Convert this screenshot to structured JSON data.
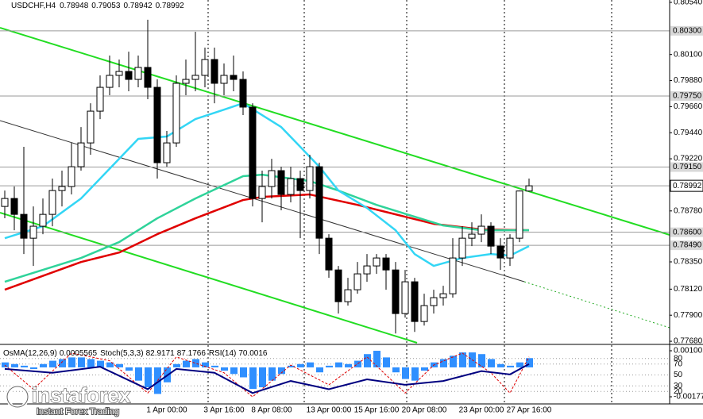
{
  "brand": {
    "name": "instaforex",
    "tagline": "Instant Forex Trading"
  },
  "chart_data": [
    {
      "type": "candlestick",
      "symbol": "USDCHF,H4",
      "categories": [
        null,
        null,
        null,
        null,
        null,
        null,
        null,
        null,
        null,
        null,
        null,
        null,
        null,
        null,
        null,
        null,
        null,
        "1 Apr 00:00",
        null,
        null,
        null,
        null,
        null,
        "3 Apr 16:00",
        null,
        null,
        null,
        null,
        "8 Apr 08:00",
        null,
        null,
        null,
        null,
        null,
        "13 Apr 00:00",
        null,
        null,
        null,
        null,
        "15 Apr 16:00",
        null,
        null,
        null,
        null,
        "20 Apr 08:00",
        null,
        null,
        null,
        null,
        null,
        "23 Apr 00:00",
        null,
        null,
        null,
        null,
        "27 Apr 16:00"
      ],
      "open": [
        0.78818,
        0.78885,
        0.78751,
        0.7855,
        0.78651,
        0.78751,
        0.78952,
        0.78986,
        0.79153,
        0.79354,
        0.79622,
        0.79823,
        0.79924,
        0.79957,
        0.7989,
        0.79991,
        0.79823,
        0.79187,
        0.79354,
        0.79857,
        0.7989,
        0.79924,
        0.80058,
        0.79857,
        0.79924,
        0.7989,
        0.79656,
        0.78885,
        0.78986,
        0.7912,
        0.78919,
        0.79053,
        0.78952,
        0.79153,
        0.7855,
        0.78282,
        0.78014,
        0.78115,
        0.78249,
        0.78316,
        0.78383,
        0.78282,
        0.77914,
        0.78182,
        0.77847,
        0.77981,
        0.78048,
        0.78081,
        0.78383,
        0.7855,
        0.78584,
        0.78651,
        0.78483,
        0.78383,
        0.7855,
        0.78948
      ],
      "high": [
        0.78952,
        0.78986,
        0.79321,
        0.78818,
        0.78885,
        0.79053,
        0.7912,
        0.79354,
        0.79488,
        0.79689,
        0.79924,
        0.80091,
        0.80058,
        0.80124,
        0.80091,
        0.80393,
        0.7989,
        0.79455,
        0.79924,
        0.80058,
        0.80292,
        0.80158,
        0.80158,
        0.80024,
        0.80091,
        0.79957,
        0.79689,
        0.7912,
        0.7922,
        0.79153,
        0.79153,
        0.7912,
        0.79254,
        0.79187,
        0.78584,
        0.78316,
        0.78215,
        0.78349,
        0.78416,
        0.78416,
        0.78416,
        0.78349,
        0.78282,
        0.78215,
        0.78081,
        0.78115,
        0.78148,
        0.7855,
        0.78651,
        0.78684,
        0.78751,
        0.78684,
        0.7855,
        0.78584,
        0.78952,
        0.79053
      ],
      "low": [
        0.78718,
        0.78617,
        0.78416,
        0.78316,
        0.78584,
        0.78651,
        0.78818,
        0.78919,
        0.7912,
        0.79254,
        0.79555,
        0.79756,
        0.79823,
        0.7979,
        0.79823,
        0.79723,
        0.79053,
        0.79153,
        0.79321,
        0.79756,
        0.7979,
        0.79823,
        0.79689,
        0.79756,
        0.7979,
        0.79589,
        0.78818,
        0.78684,
        0.78885,
        0.78785,
        0.78852,
        0.7855,
        0.78885,
        0.78416,
        0.78215,
        0.77914,
        0.77981,
        0.78081,
        0.78182,
        0.78249,
        0.78115,
        0.77746,
        0.7788,
        0.77759,
        0.77813,
        0.77914,
        0.77981,
        0.78048,
        0.78316,
        0.78483,
        0.78517,
        0.78416,
        0.78282,
        0.78316,
        0.78517,
        0.78942
      ],
      "close": [
        0.78885,
        0.78751,
        0.7855,
        0.78651,
        0.78751,
        0.78952,
        0.78986,
        0.79153,
        0.79354,
        0.79622,
        0.79823,
        0.79924,
        0.79957,
        0.7989,
        0.79991,
        0.79823,
        0.79187,
        0.79354,
        0.79857,
        0.7989,
        0.79924,
        0.80058,
        0.79857,
        0.79924,
        0.7989,
        0.79656,
        0.78885,
        0.78986,
        0.7912,
        0.78919,
        0.79053,
        0.78952,
        0.79153,
        0.7855,
        0.78282,
        0.78014,
        0.78115,
        0.78249,
        0.78316,
        0.78383,
        0.78282,
        0.77914,
        0.78182,
        0.77847,
        0.77981,
        0.78048,
        0.78081,
        0.78383,
        0.7855,
        0.78584,
        0.78651,
        0.78483,
        0.78383,
        0.7855,
        0.78948,
        0.78992
      ],
      "series": [
        {
          "color": "#e00000",
          "x": [
            0,
            8,
            12,
            16,
            20,
            25,
            27,
            32,
            37,
            41,
            45,
            50,
            55
          ],
          "values": [
            0.78115,
            0.78349,
            0.78429,
            0.78584,
            0.78718,
            0.78872,
            0.78898,
            0.78919,
            0.78831,
            0.78751,
            0.78671,
            0.78624,
            0.78617
          ]
        },
        {
          "color": "#2fd39a",
          "x": [
            0,
            8,
            12,
            16,
            20,
            25,
            27,
            32,
            35,
            39,
            43,
            46,
            50,
            55
          ],
          "values": [
            0.78182,
            0.78383,
            0.78517,
            0.78718,
            0.78885,
            0.79073,
            0.79086,
            0.79032,
            0.78952,
            0.78831,
            0.78731,
            0.78657,
            0.78617,
            0.78617
          ]
        },
        {
          "color": "#33d6f5",
          "x": [
            0,
            4,
            8,
            12,
            14,
            17,
            20,
            23,
            25,
            29,
            31,
            33,
            35,
            38,
            41,
            43,
            45,
            48,
            51,
            53,
            55
          ],
          "values": [
            0.7855,
            0.78651,
            0.78885,
            0.7922,
            0.79388,
            0.79408,
            0.79555,
            0.79635,
            0.79689,
            0.79488,
            0.79321,
            0.79153,
            0.78952,
            0.78805,
            0.78617,
            0.78416,
            0.78316,
            0.78383,
            0.78416,
            0.78403,
            0.78483
          ]
        }
      ],
      "ylim": [
        0.77667,
        0.8056
      ],
      "yticks": [
        {
          "value": 0.8054,
          "label": "0.80540"
        },
        {
          "value": 0.801,
          "label": "0.80100"
        },
        {
          "value": 0.7988,
          "label": "0.79880"
        },
        {
          "value": 0.7966,
          "label": "0.79660"
        },
        {
          "value": 0.7944,
          "label": "0.79440"
        },
        {
          "value": 0.7922,
          "label": "0.79220"
        },
        {
          "value": 0.7878,
          "label": "0.78780"
        },
        {
          "value": 0.7835,
          "label": "0.78350"
        },
        {
          "value": 0.7812,
          "label": "0.78120"
        },
        {
          "value": 0.779,
          "label": "0.77900"
        },
        {
          "value": 0.7768,
          "label": "0.77680"
        }
      ],
      "levels": [
        {
          "value": 0.803,
          "label": "0.80300"
        },
        {
          "value": 0.7975,
          "label": "0.79750"
        },
        {
          "value": 0.7915,
          "label": "0.79150"
        },
        {
          "value": 0.786,
          "label": "0.78600"
        },
        {
          "value": 0.7849,
          "label": "0.78490"
        }
      ],
      "last_price": 0.78992
    },
    {
      "type": "oscillator",
      "osma_label": "OsMA(12,26,9)",
      "stoch_label": "Stoch(5,3,3)",
      "rsi_label": "RSI(14)",
      "osma_color": "#2f8fff",
      "osma": [
        0.0003,
        0.0002,
        0.0001,
        -0.0001,
        0.0002,
        0.0004,
        0.0005,
        0.0006,
        0.0006,
        0.0005,
        0.0004,
        0.0003,
        0.0002,
        -0.0002,
        -0.0008,
        -0.0012,
        -0.0016,
        -0.0009,
        0.0002,
        0.0004,
        0.0005,
        0.0003,
        0.0001,
        -0.0002,
        -0.0004,
        -0.0006,
        -0.0013,
        -0.0012,
        -0.0008,
        -0.0004,
        0.0001,
        0.0002,
        0.0003,
        -0.0003,
        0.0001,
        0.0003,
        0.0002,
        0.0004,
        0.0008,
        0.001,
        0.0006,
        -0.0003,
        -0.0007,
        -0.0008,
        -0.0002,
        0.0003,
        0.0005,
        0.0007,
        0.0009,
        0.0009,
        0.0008,
        0.0005,
        0.0002,
        0.0001,
        0.0003,
        0.0005565
      ],
      "ylim": [
        -0.0021073,
        0.0011929
      ],
      "yticks": [
        0.0010016,
        -0.0017725
      ],
      "level_lim": [
        0,
        100
      ],
      "level_ticks": [
        80,
        70,
        50,
        30,
        20
      ],
      "stoch": {
        "color": "#e00000",
        "x": [
          0,
          3,
          7,
          11,
          15,
          18,
          23,
          26,
          30,
          34,
          38,
          42,
          45,
          48,
          51,
          53,
          55
        ],
        "values": [
          68,
          24,
          90,
          76,
          17,
          83,
          54,
          10,
          68,
          32,
          83,
          17,
          68,
          90,
          54,
          17,
          82.9171
        ]
      },
      "stoch_signal": 87.1766,
      "rsi": {
        "color": "#000080",
        "x": [
          0,
          5,
          10,
          15,
          18,
          22,
          26,
          30,
          34,
          38,
          42,
          46,
          50,
          53,
          55
        ],
        "values": [
          61,
          54,
          65,
          24,
          61,
          54,
          17,
          39,
          24,
          42,
          32,
          39,
          57,
          51,
          70.0016
        ]
      }
    }
  ]
}
